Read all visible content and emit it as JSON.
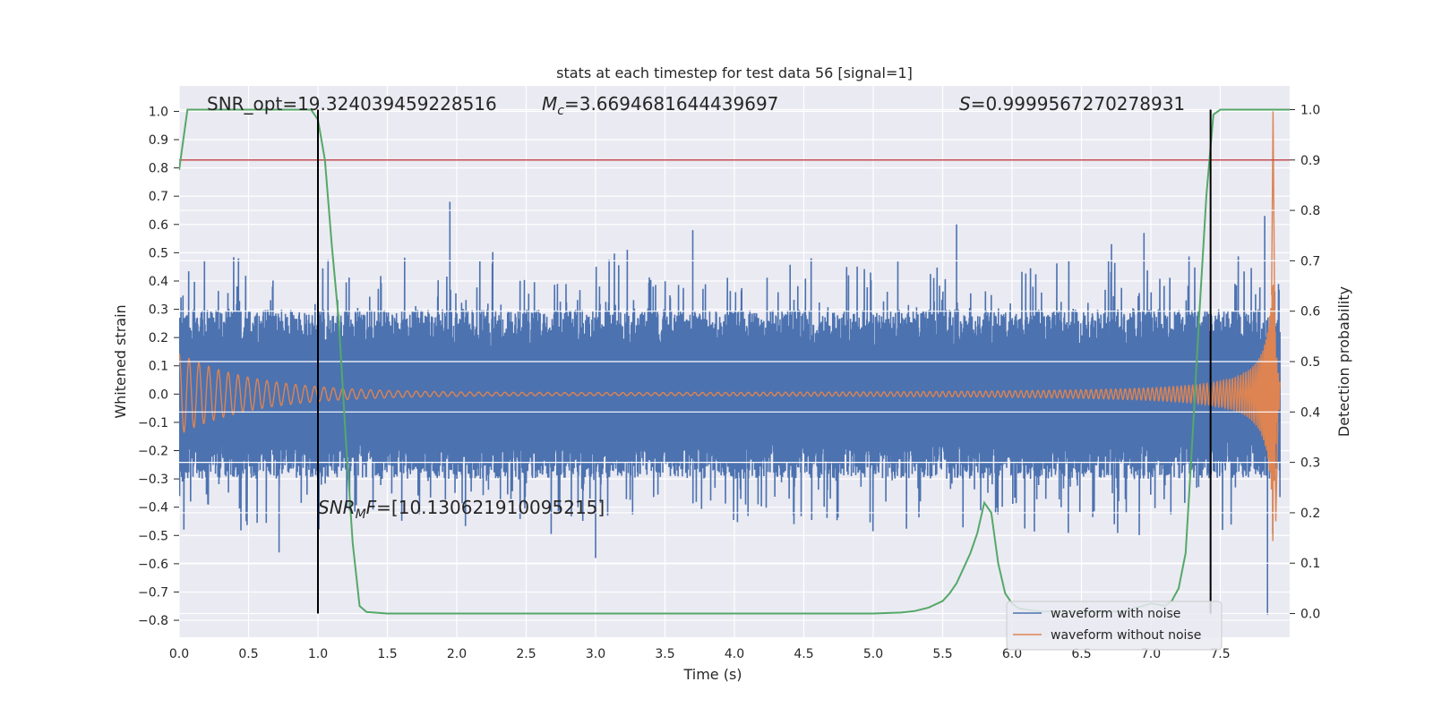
{
  "chart_data": {
    "type": "line",
    "title": "stats at each timestep for test data 56 [signal=1]",
    "xlabel": "Time (s)",
    "ylabel": "Whitened strain",
    "y2label": "Detection probability",
    "xlim": [
      0.0,
      8.0
    ],
    "ylim": [
      -0.86,
      1.09
    ],
    "y2lim": [
      -0.047,
      1.047
    ],
    "x_ticks": [
      0.0,
      0.5,
      1.0,
      1.5,
      2.0,
      2.5,
      3.0,
      3.5,
      4.0,
      4.5,
      5.0,
      5.5,
      6.0,
      6.5,
      7.0,
      7.5
    ],
    "x_tick_labels": [
      "0.0",
      "0.5",
      "1.0",
      "1.5",
      "2.0",
      "2.5",
      "3.0",
      "3.5",
      "4.0",
      "4.5",
      "5.0",
      "5.5",
      "6.0",
      "6.5",
      "7.0",
      "7.5"
    ],
    "y_ticks": [
      -0.8,
      -0.7,
      -0.6,
      -0.5,
      -0.4,
      -0.3,
      -0.2,
      -0.1,
      0.0,
      0.1,
      0.2,
      0.3,
      0.4,
      0.5,
      0.6,
      0.7,
      0.8,
      0.9,
      1.0
    ],
    "y_tick_labels": [
      "−0.8",
      "−0.7",
      "−0.6",
      "−0.5",
      "−0.4",
      "−0.3",
      "−0.2",
      "−0.1",
      "0.0",
      "0.1",
      "0.2",
      "0.3",
      "0.4",
      "0.5",
      "0.6",
      "0.7",
      "0.8",
      "0.9",
      "1.0"
    ],
    "y2_ticks": [
      0.0,
      0.1,
      0.2,
      0.3,
      0.4,
      0.5,
      0.6,
      0.7,
      0.8,
      0.9,
      1.0
    ],
    "y2_tick_labels": [
      "0.0",
      "0.1",
      "0.2",
      "0.3",
      "0.4",
      "0.5",
      "0.6",
      "0.7",
      "0.8",
      "0.9",
      "1.0"
    ],
    "grid": true,
    "legend_position": "lower-right",
    "series": [
      {
        "name": "waveform with noise",
        "color": "#4c72b0",
        "kind": "noisy-strain",
        "envelope_typical": 0.3,
        "peak_range": [
          -0.78,
          0.68
        ]
      },
      {
        "name": "waveform without noise",
        "color": "#dd8452",
        "kind": "chirp",
        "start_amplitude": 0.14,
        "peak_time": 7.88,
        "peak_value": 1.0,
        "trough_value": -0.45
      },
      {
        "name": "",
        "color": "#55a868",
        "axis": "secondary",
        "kind": "probability",
        "x": [
          0.0,
          0.06,
          0.9,
          0.95,
          1.0,
          1.05,
          1.1,
          1.15,
          1.2,
          1.25,
          1.3,
          1.35,
          1.5,
          2.0,
          3.0,
          4.0,
          4.5,
          5.0,
          5.2,
          5.3,
          5.4,
          5.5,
          5.55,
          5.6,
          5.65,
          5.7,
          5.75,
          5.8,
          5.85,
          5.9,
          5.95,
          6.0,
          6.05,
          6.2,
          6.5,
          6.8,
          7.0,
          7.05,
          7.1,
          7.15,
          7.2,
          7.25,
          7.3,
          7.35,
          7.4,
          7.45,
          7.5,
          7.55,
          8.0
        ],
        "y": [
          0.88,
          1.0,
          1.0,
          1.0,
          0.98,
          0.9,
          0.73,
          0.58,
          0.35,
          0.14,
          0.015,
          0.003,
          0.0,
          0.0,
          0.0,
          0.0,
          0.0,
          0.0,
          0.002,
          0.005,
          0.012,
          0.025,
          0.04,
          0.06,
          0.09,
          0.12,
          0.16,
          0.22,
          0.2,
          0.1,
          0.04,
          0.02,
          0.01,
          0.004,
          0.003,
          0.004,
          0.02,
          0.018,
          0.015,
          0.025,
          0.05,
          0.12,
          0.35,
          0.6,
          0.83,
          0.99,
          1.0,
          1.0,
          1.0
        ]
      }
    ],
    "threshold": {
      "y2": 0.9,
      "color": "#c44e52"
    },
    "vlines": [
      1.0,
      7.43
    ],
    "annotations": {
      "snr_opt": "SNR_opt=19.324039459228516",
      "mc_var": "M",
      "mc_sub": "c",
      "mc_value": "=3.6694681644439697",
      "s_var": "S",
      "s_value": "=0.9999567270278931",
      "snr_mf_var": "SNR",
      "snr_mf_sub": "M",
      "snr_mf_tail": "F",
      "snr_mf_value": "=[10.130621910095215]"
    }
  }
}
